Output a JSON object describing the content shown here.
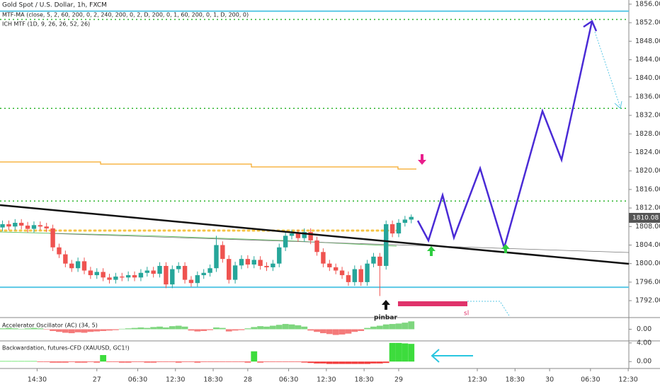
{
  "chart_data": [
    {
      "type": "candlestick",
      "title": "Gold Spot / U.S. Dollar, 1h, FXCM",
      "indicators": [
        "MTF-MA (close, 5, 2, 60, 200, 0, 2, 240, 200, 0, 2, D, 200, 0, 1, 60, 200, 0, 1, D, 200, 0)",
        "ICH MTF (1D, 9, 26, 26, 52, 26)"
      ],
      "annotations": [
        "pinbar",
        "sl"
      ],
      "up_color": "#26a69a",
      "down_color": "#ef5350",
      "x": [
        9,
        10,
        11,
        12,
        13,
        14,
        15,
        16,
        17,
        18,
        19,
        20,
        21,
        22,
        23,
        24,
        25,
        26,
        27,
        28,
        29,
        30,
        31,
        32,
        33,
        34,
        35,
        36,
        37,
        38,
        39,
        40,
        41,
        42,
        43,
        44,
        45,
        46,
        47,
        48,
        49,
        50,
        51,
        52,
        53,
        54,
        55,
        56,
        57,
        58,
        59,
        60,
        61,
        62,
        63,
        64,
        65,
        66,
        67,
        68,
        69,
        70,
        71,
        72,
        73,
        74
      ],
      "open": [
        1807.8,
        1808.5,
        1808,
        1808.8,
        1808.2,
        1807.5,
        1808.3,
        1808,
        1807.6,
        1803.5,
        1802,
        1800,
        1799,
        1800.5,
        1798.5,
        1797.5,
        1798.2,
        1797,
        1796.5,
        1797.2,
        1797,
        1797.5,
        1797,
        1798,
        1798.5,
        1797.8,
        1799.5,
        1795.5,
        1798.8,
        1799.5,
        1796.5,
        1795.8,
        1797.5,
        1798,
        1799,
        1804,
        1801,
        1796.5,
        1799.6,
        1801,
        1799.8,
        1800.8,
        1799.5,
        1799.2,
        1800,
        1803.5,
        1806,
        1806.5,
        1805.5,
        1806.8,
        1805,
        1802.5,
        1800,
        1799.2,
        1798.5,
        1797.5,
        1796,
        1798.8,
        1796,
        1800,
        1801.5,
        1799.5,
        1808.5,
        1806.5,
        1808.8,
        1809.5
      ],
      "high": [
        1809.3,
        1809.3,
        1809.6,
        1809.6,
        1809,
        1809.1,
        1809.1,
        1808.8,
        1808.4,
        1804.3,
        1802.8,
        1800.8,
        1801.3,
        1801.3,
        1799.3,
        1799,
        1799,
        1797.8,
        1798,
        1798,
        1798.3,
        1798.3,
        1798.8,
        1799.3,
        1799.3,
        1800.3,
        1800.3,
        1799.6,
        1800.3,
        1800.3,
        1797.3,
        1798.3,
        1798.8,
        1799.8,
        1806,
        1804.8,
        1801.8,
        1800.4,
        1801.8,
        1801.8,
        1801.6,
        1801.6,
        1800.3,
        1800.8,
        1804.3,
        1806.8,
        1807.3,
        1807.3,
        1807.6,
        1807.6,
        1805.8,
        1803.3,
        1800.8,
        1800,
        1799.3,
        1798.3,
        1799.6,
        1799.6,
        1800.8,
        1802.3,
        1802.3,
        1809.3,
        1809.3,
        1809.6,
        1810.3,
        1810.6
      ],
      "low": [
        1807,
        1807.2,
        1807.2,
        1807.4,
        1806.7,
        1806.7,
        1807.2,
        1806.8,
        1802.7,
        1801.2,
        1799.2,
        1798.2,
        1798.2,
        1797.7,
        1796.7,
        1796.7,
        1796.2,
        1795.7,
        1795.7,
        1796.2,
        1796.2,
        1796.2,
        1796.2,
        1797.2,
        1797,
        1797,
        1794.7,
        1794.7,
        1798,
        1795.7,
        1795,
        1795,
        1796.7,
        1797.2,
        1798.2,
        1800.2,
        1795.7,
        1795.7,
        1798.8,
        1799,
        1799,
        1798.7,
        1798.4,
        1798.4,
        1799.2,
        1802.7,
        1805.2,
        1804.7,
        1804.7,
        1804.2,
        1801.7,
        1799.2,
        1798.4,
        1797.7,
        1796.7,
        1795.2,
        1795.2,
        1795.2,
        1795.2,
        1799.2,
        1793,
        1798.7,
        1805.7,
        1805.7,
        1808,
        1808.7
      ],
      "close": [
        1808.5,
        1808,
        1808.8,
        1808.2,
        1807.5,
        1808.3,
        1808,
        1807.6,
        1803.5,
        1802,
        1800,
        1799,
        1800.5,
        1798.5,
        1797.5,
        1798.2,
        1797,
        1796.5,
        1797.2,
        1797,
        1797.5,
        1797,
        1798,
        1798.5,
        1797.8,
        1799.5,
        1795.5,
        1798.8,
        1799.5,
        1796.5,
        1795.8,
        1797.5,
        1798,
        1799,
        1804,
        1801,
        1796.5,
        1799.6,
        1801,
        1799.8,
        1800.8,
        1799.5,
        1799.2,
        1800,
        1803.5,
        1806,
        1806.5,
        1805.5,
        1806.8,
        1805,
        1802.5,
        1800,
        1799.2,
        1798.5,
        1797.5,
        1796,
        1798.8,
        1796,
        1800,
        1801.5,
        1799.5,
        1808.5,
        1806.5,
        1808.8,
        1809.5,
        1810.08
      ],
      "levels": [
        1854.5,
        1852.7,
        1833.5,
        1813.5,
        1794.9
      ],
      "level_colors": [
        "#5bc8e6",
        "#2db52d",
        "#2db52d",
        "#2db52d",
        "#5bc8e6"
      ],
      "xlim": [
        8.6,
        108.6
      ],
      "xticks": [
        {
          "value": 14.5,
          "label": "14:30"
        },
        {
          "value": 24,
          "label": "27"
        },
        {
          "value": 30.5,
          "label": "06:30"
        },
        {
          "value": 36.5,
          "label": "12:30"
        },
        {
          "value": 42.5,
          "label": "18:30"
        },
        {
          "value": 48,
          "label": "28"
        },
        {
          "value": 54.5,
          "label": "06:30"
        },
        {
          "value": 60.5,
          "label": "12:30"
        },
        {
          "value": 66.5,
          "label": "18:30"
        },
        {
          "value": 72,
          "label": "29"
        },
        {
          "value": 84.5,
          "label": "12:30"
        },
        {
          "value": 90.5,
          "label": "18:30"
        },
        {
          "value": 96,
          "label": "30"
        },
        {
          "value": 102.5,
          "label": "06:30"
        },
        {
          "value": 108.5,
          "label": "12:30"
        }
      ],
      "ylim": [
        1788.5,
        1856.9
      ],
      "yticks": [
        {
          "value": 1792,
          "label": "1792.00"
        },
        {
          "value": 1796,
          "label": "1796.00"
        },
        {
          "value": 1800,
          "label": "1800.00"
        },
        {
          "value": 1804,
          "label": "1804.00"
        },
        {
          "value": 1808,
          "label": "1808.00"
        },
        {
          "value": 1812,
          "label": "1812.00"
        },
        {
          "value": 1816,
          "label": "1816.00"
        },
        {
          "value": 1820,
          "label": "1820.00"
        },
        {
          "value": 1824,
          "label": "1824.00"
        },
        {
          "value": 1828,
          "label": "1828.00"
        },
        {
          "value": 1832,
          "label": "1832.00"
        },
        {
          "value": 1836,
          "label": "1836.00"
        },
        {
          "value": 1840,
          "label": "1840.00"
        },
        {
          "value": 1844,
          "label": "1844.00"
        },
        {
          "value": 1848,
          "label": "1848.00"
        },
        {
          "value": 1852,
          "label": "1852.00"
        },
        {
          "value": 1856,
          "label": "1856.00"
        }
      ]
    },
    {
      "type": "bar",
      "title": "Accelerator Oscillator (AC) (34, 5)",
      "up_color": "#7ed67e",
      "down_color": "#f47a7a",
      "x": [
        9,
        10,
        11,
        12,
        13,
        14,
        15,
        16,
        17,
        18,
        19,
        20,
        21,
        22,
        23,
        24,
        25,
        26,
        27,
        28,
        29,
        30,
        31,
        32,
        33,
        34,
        35,
        36,
        37,
        38,
        39,
        40,
        41,
        42,
        43,
        44,
        45,
        46,
        47,
        48,
        49,
        50,
        51,
        52,
        53,
        54,
        55,
        56,
        57,
        58,
        59,
        60,
        61,
        62,
        63,
        64,
        65,
        66,
        67,
        68,
        69,
        70,
        71,
        72,
        73,
        74
      ],
      "values": [
        0.2,
        0.3,
        0.2,
        0.1,
        0.2,
        0.3,
        0.2,
        -0.1,
        -0.4,
        -0.6,
        -0.8,
        -0.9,
        -0.7,
        -0.8,
        -0.6,
        -0.5,
        -0.4,
        -0.3,
        -0.2,
        0.1,
        0.2,
        0.3,
        0.4,
        0.3,
        0.5,
        0.6,
        0.4,
        0.7,
        0.8,
        0.6,
        -0.3,
        -0.5,
        -0.4,
        -0.2,
        0.4,
        0.3,
        -0.5,
        -0.3,
        -0.2,
        0.2,
        0.5,
        0.7,
        0.6,
        0.8,
        1.0,
        1.2,
        1.1,
        0.9,
        0.6,
        -0.3,
        -0.6,
        -0.9,
        -1.1,
        -1.3,
        -1.2,
        -1.0,
        -0.6,
        -0.4,
        0.3,
        0.6,
        0.8,
        1.1,
        1.2,
        1.3,
        1.5,
        1.8
      ],
      "ylim": [
        -2.5,
        2.5
      ],
      "yticks": [
        {
          "value": 0,
          "label": "0.00"
        }
      ]
    },
    {
      "type": "bar",
      "title": "Backwardation, futures-CFD (XAUUSD, GC1!)",
      "up_color": "#3ddc3d",
      "down_color": "#f23b3b",
      "x": [
        9,
        10,
        11,
        12,
        13,
        14,
        15,
        16,
        17,
        18,
        19,
        20,
        21,
        22,
        23,
        24,
        25,
        26,
        27,
        28,
        29,
        30,
        31,
        32,
        33,
        34,
        35,
        36,
        37,
        38,
        39,
        40,
        41,
        42,
        43,
        44,
        45,
        46,
        47,
        48,
        49,
        50,
        51,
        52,
        53,
        54,
        55,
        56,
        57,
        58,
        59,
        60,
        61,
        62,
        63,
        64,
        65,
        66,
        67,
        68,
        69,
        70,
        71,
        72,
        73,
        74
      ],
      "values": [
        0.1,
        0.1,
        0.1,
        0.1,
        0.1,
        0.1,
        -0.1,
        -0.1,
        -0.2,
        -0.2,
        -0.2,
        -0.1,
        -0.2,
        -0.2,
        -0.1,
        -0.2,
        1.4,
        -0.1,
        -0.1,
        -0.2,
        -0.2,
        -0.1,
        -0.1,
        -0.2,
        -0.2,
        -0.1,
        -0.1,
        -0.1,
        -0.2,
        -0.1,
        -0.1,
        -0.2,
        -0.1,
        -0.1,
        -0.1,
        -0.1,
        -0.1,
        -0.1,
        -0.1,
        -0.2,
        2.2,
        -0.2,
        -0.1,
        -0.1,
        -0.1,
        -0.1,
        -0.1,
        -0.1,
        -0.2,
        -0.3,
        -0.4,
        -0.4,
        -0.5,
        -0.5,
        -0.5,
        -0.5,
        -0.5,
        -0.5,
        -0.5,
        -0.4,
        -0.4,
        -0.3,
        4.0,
        4.0,
        3.9,
        3.8
      ],
      "ylim": [
        -0.65,
        4.13
      ],
      "yticks": [
        {
          "value": 0,
          "label": "0.00"
        },
        {
          "value": 4,
          "label": "4.00"
        }
      ]
    }
  ]
}
